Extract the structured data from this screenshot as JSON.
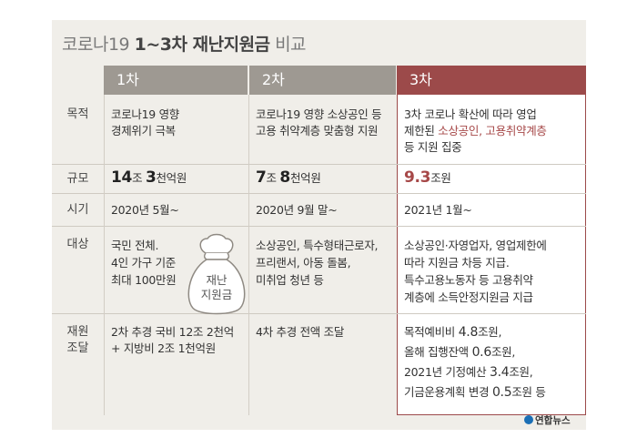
{
  "title": {
    "prefix": "코로나19 ",
    "main": "1~3차 재난지원금",
    "suffix": " 비교"
  },
  "columns": {
    "c1": "1차",
    "c2": "2차",
    "c3": "3차"
  },
  "rows": {
    "purpose": {
      "label": "목적",
      "c1": [
        "코로나19 영향",
        "경제위기 극복"
      ],
      "c2": [
        "코로나19 영향 소상공인 등",
        "고용 취약계층 맞춤형 지원"
      ],
      "c3": {
        "line1": "3차 코로나 확산에 따라 영업",
        "line2_pre": "제한된 ",
        "line2_hl": "소상공인, 고용취약계층",
        "line3": "등 지원 집중"
      }
    },
    "scale": {
      "label": "규모",
      "c1": {
        "a": "14",
        "u1": "조 ",
        "b": "3",
        "u2": "천억원"
      },
      "c2": {
        "a": "7",
        "u1": "조 ",
        "b": "8",
        "u2": "천억원"
      },
      "c3": {
        "a": "9.3",
        "u1": "조원"
      }
    },
    "timing": {
      "label": "시기",
      "c1": "2020년 5월~",
      "c2": "2020년 9월 말~",
      "c3": "2021년 1월~"
    },
    "target": {
      "label": "대상",
      "c1": [
        "국민 전체.",
        "4인 가구 기준",
        "최대 100만원"
      ],
      "c2": [
        "소상공인, 특수형태근로자,",
        "프리랜서, 아동 돌봄,",
        "미취업 청년 등"
      ],
      "c3": [
        "소상공인·자영업자, 영업제한에",
        "따라 지원금 차등 지급.",
        "특수고용노동자 등 고용취약",
        "계층에 소득안정지원금 지급"
      ]
    },
    "funding": {
      "label1": "재원",
      "label2": "조달",
      "c1": [
        "2차 추경 국비 12조 2천억",
        "+ 지방비 2조 1천억원"
      ],
      "c2": [
        "4차 추경 전액 조달"
      ],
      "c3": [
        {
          "pre": "목적예비비 ",
          "num": "4.8",
          "post": "조원,"
        },
        {
          "pre": "올해 집행잔액 ",
          "num": "0.6",
          "post": "조원,"
        },
        {
          "pre": "2021년 기정예산 ",
          "num": "3.4",
          "post": "조원,"
        },
        {
          "pre": "기금운용계획 변경 ",
          "num": "0.5",
          "post": "조원 등"
        }
      ]
    }
  },
  "bag_text": [
    "재난",
    "지원금"
  ],
  "logo": "연합뉴스",
  "colors": {
    "header_gray": "#9e9992",
    "header_red": "#9c4a4a",
    "highlight": "#a64848",
    "background": "#f0eee9"
  }
}
